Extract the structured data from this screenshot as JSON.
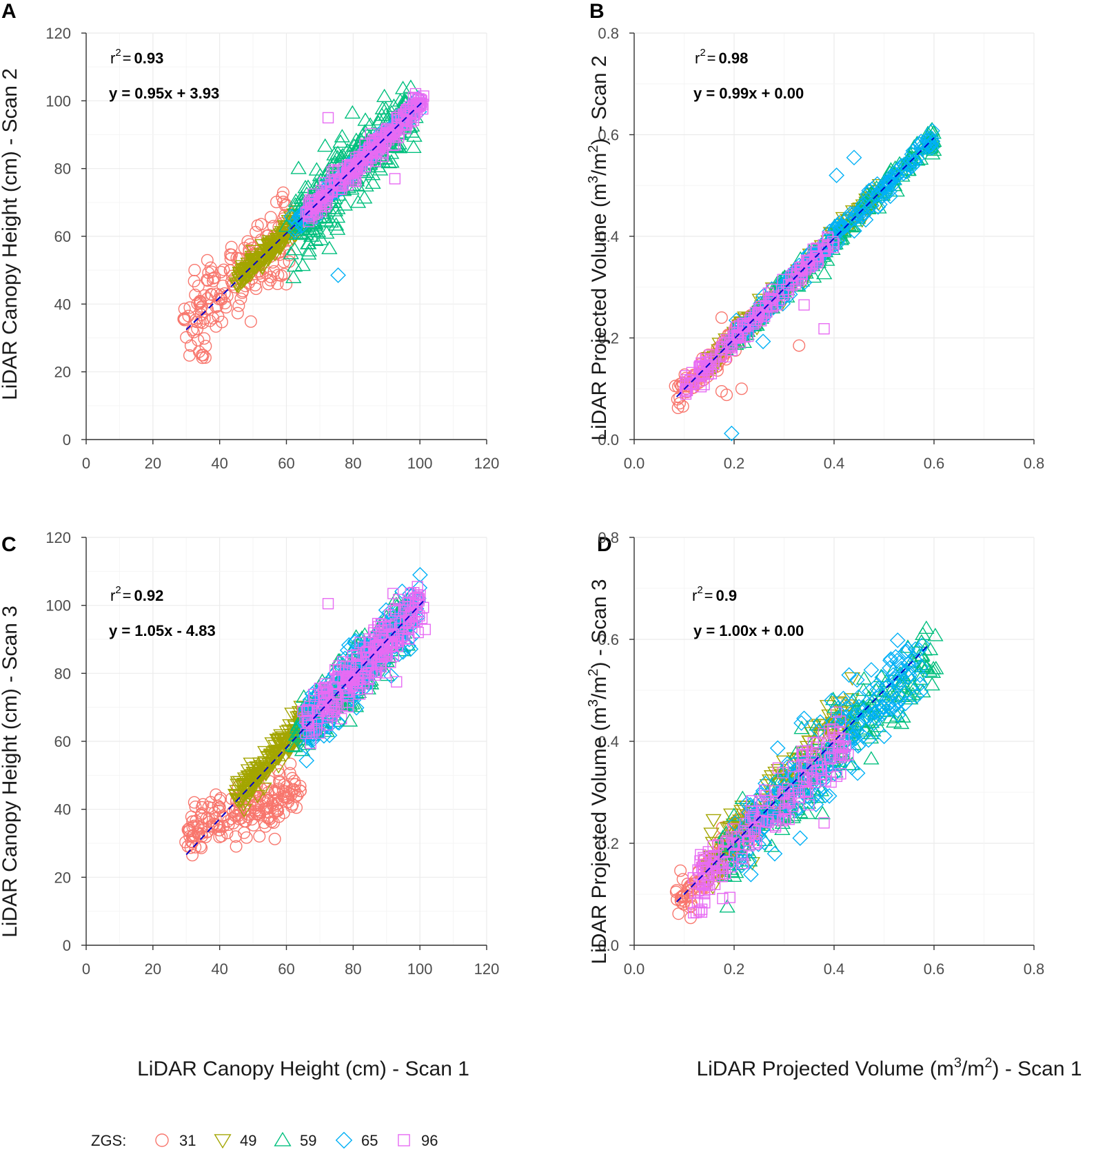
{
  "legend": {
    "title": "ZGS:",
    "entries": [
      {
        "label": "31",
        "color": "#F8766D",
        "shape": "circle"
      },
      {
        "label": "49",
        "color": "#A3A500",
        "shape": "triangle-down"
      },
      {
        "label": "59",
        "color": "#00BF7D",
        "shape": "triangle-up"
      },
      {
        "label": "65",
        "color": "#00B0F6",
        "shape": "diamond"
      },
      {
        "label": "96",
        "color": "#E76BF3",
        "shape": "square"
      }
    ]
  },
  "fit_line_color": "#0000CC",
  "chart_data": [
    {
      "panel": "A",
      "type": "scatter",
      "xlabel": "",
      "ylabel": "LiDAR Canopy Height (cm) - Scan 2",
      "xlim": [
        0,
        120
      ],
      "ylim": [
        0,
        120
      ],
      "xticks": [
        "0",
        "20",
        "40",
        "60",
        "80",
        "100",
        "120"
      ],
      "yticks": [
        "0",
        "20",
        "40",
        "60",
        "80",
        "100",
        "120"
      ],
      "r2_label": "r",
      "r2_sup": "2",
      "r2_eq": "=",
      "r2_value": "0.93",
      "equation": "y = 0.95x + 3.93",
      "fit": {
        "slope": 0.95,
        "intercept": 3.93,
        "x_range": [
          30,
          101
        ]
      },
      "series": [
        {
          "name": "31",
          "x_range": [
            30,
            60
          ],
          "points": 170,
          "slope": 0.95,
          "intercept": 3.93,
          "noise": 6.5
        },
        {
          "name": "49",
          "x_range": [
            45,
            64
          ],
          "points": 180,
          "slope": 0.95,
          "intercept": 3.93,
          "noise": 1.6
        },
        {
          "name": "59",
          "x_range": [
            62,
            98
          ],
          "points": 300,
          "slope": 0.95,
          "intercept": 3.93,
          "noise": 5.5
        },
        {
          "name": "65",
          "x_range": [
            62,
            100
          ],
          "points": 140,
          "slope": 0.95,
          "intercept": 3.93,
          "noise": 1.4
        },
        {
          "name": "96",
          "x_range": [
            66,
            101
          ],
          "points": 260,
          "slope": 0.95,
          "intercept": 3.93,
          "noise": 1.8
        }
      ],
      "outliers": [
        {
          "series": "59",
          "x": 60,
          "y": 63
        },
        {
          "series": "65",
          "x": 75.5,
          "y": 48.5
        },
        {
          "series": "96",
          "x": 72.5,
          "y": 95
        },
        {
          "series": "96",
          "x": 92.5,
          "y": 77
        },
        {
          "series": "96",
          "x": 100.5,
          "y": 100
        }
      ]
    },
    {
      "panel": "B",
      "type": "scatter",
      "xlabel": "",
      "ylabel_prefix": "LiDAR Projected Volume (m",
      "ylabel_sup1": "3",
      "ylabel_mid": "/m",
      "ylabel_sup2": "2",
      "ylabel_suffix": ") - Scan 2",
      "xlim": [
        0,
        0.8
      ],
      "ylim": [
        0,
        0.8
      ],
      "xticks": [
        "0.0",
        "0.2",
        "0.4",
        "0.6",
        "0.8"
      ],
      "yticks": [
        "0.0",
        "0.2",
        "0.4",
        "0.6",
        "0.8"
      ],
      "r2_label": "r",
      "r2_sup": "2",
      "r2_eq": "=",
      "r2_value": "0.98",
      "equation": "y = 0.99x + 0.00",
      "fit": {
        "slope": 0.99,
        "intercept": 0.0,
        "x_range": [
          0.085,
          0.6
        ]
      },
      "series": [
        {
          "name": "31",
          "x_range": [
            0.085,
            0.24
          ],
          "points": 120,
          "slope": 0.99,
          "intercept": 0.0,
          "noise": 0.012
        },
        {
          "name": "49",
          "x_range": [
            0.15,
            0.5
          ],
          "points": 150,
          "slope": 0.99,
          "intercept": 0.0,
          "noise": 0.01
        },
        {
          "name": "59",
          "x_range": [
            0.18,
            0.6
          ],
          "points": 220,
          "slope": 0.99,
          "intercept": 0.0,
          "noise": 0.012
        },
        {
          "name": "65",
          "x_range": [
            0.2,
            0.6
          ],
          "points": 200,
          "slope": 0.99,
          "intercept": 0.0,
          "noise": 0.011
        },
        {
          "name": "96",
          "x_range": [
            0.1,
            0.4
          ],
          "points": 180,
          "slope": 0.99,
          "intercept": 0.0,
          "noise": 0.011
        }
      ],
      "outliers": [
        {
          "series": "65",
          "x": 0.195,
          "y": 0.012
        },
        {
          "series": "65",
          "x": 0.44,
          "y": 0.555
        },
        {
          "series": "65",
          "x": 0.405,
          "y": 0.52
        },
        {
          "series": "65",
          "x": 0.258,
          "y": 0.193
        },
        {
          "series": "96",
          "x": 0.38,
          "y": 0.218
        },
        {
          "series": "96",
          "x": 0.34,
          "y": 0.265
        },
        {
          "series": "31",
          "x": 0.33,
          "y": 0.185
        },
        {
          "series": "31",
          "x": 0.175,
          "y": 0.095
        },
        {
          "series": "31",
          "x": 0.185,
          "y": 0.088
        },
        {
          "series": "31",
          "x": 0.215,
          "y": 0.1
        },
        {
          "series": "31",
          "x": 0.175,
          "y": 0.24
        }
      ]
    },
    {
      "panel": "C",
      "type": "scatter",
      "xlabel": "LiDAR Canopy Height (cm) - Scan 1",
      "ylabel": "LiDAR Canopy Height (cm) - Scan 3",
      "xlim": [
        0,
        120
      ],
      "ylim": [
        0,
        120
      ],
      "xticks": [
        "0",
        "20",
        "40",
        "60",
        "80",
        "100",
        "120"
      ],
      "yticks": [
        "0",
        "20",
        "40",
        "60",
        "80",
        "100",
        "120"
      ],
      "r2_label": "r",
      "r2_sup": "2",
      "r2_eq": "=",
      "r2_value": "0.92",
      "equation": "y = 1.05x - 4.83",
      "fit": {
        "slope": 1.05,
        "intercept": -4.83,
        "x_range": [
          30,
          101
        ]
      },
      "series": [
        {
          "name": "31",
          "x_range": [
            30,
            64
          ],
          "points": 200,
          "slope": 0.35,
          "intercept": 23.0,
          "noise": 3.8
        },
        {
          "name": "49",
          "x_range": [
            45,
            66
          ],
          "points": 190,
          "slope": 1.15,
          "intercept": -9.0,
          "noise": 2.2
        },
        {
          "name": "59",
          "x_range": [
            63,
            97
          ],
          "points": 260,
          "slope": 1.05,
          "intercept": -4.83,
          "noise": 4.5
        },
        {
          "name": "65",
          "x_range": [
            65,
            100
          ],
          "points": 240,
          "slope": 1.05,
          "intercept": -4.83,
          "noise": 4.0
        },
        {
          "name": "96",
          "x_range": [
            66,
            101
          ],
          "points": 260,
          "slope": 1.05,
          "intercept": -4.83,
          "noise": 4.0
        }
      ],
      "outliers": [
        {
          "series": "96",
          "x": 72.5,
          "y": 100.5
        },
        {
          "series": "96",
          "x": 93,
          "y": 77.5
        },
        {
          "series": "59",
          "x": 79,
          "y": 66
        },
        {
          "series": "31",
          "x": 63,
          "y": 40.5
        }
      ]
    },
    {
      "panel": "D",
      "type": "scatter",
      "xlabel_prefix": "LiDAR Projected Volume (m",
      "xlabel_sup1": "3",
      "xlabel_mid": "/m",
      "xlabel_sup2": "2",
      "xlabel_suffix": ") - Scan 1",
      "ylabel_prefix": "LiDAR Projected Volume (m",
      "ylabel_sup1": "3",
      "ylabel_mid": "/m",
      "ylabel_sup2": "2",
      "ylabel_suffix": ") - Scan 3",
      "xlim": [
        0,
        0.8
      ],
      "ylim": [
        0,
        0.8
      ],
      "xticks": [
        "0.0",
        "0.2",
        "0.4",
        "0.6",
        "0.8"
      ],
      "yticks": [
        "0.0",
        "0.2",
        "0.4",
        "0.6",
        "0.8"
      ],
      "r2_label": "r",
      "r2_sup": "2",
      "r2_eq": "=",
      "r2_value": "0.9",
      "equation": "y = 1.00x + 0.00",
      "fit": {
        "slope": 1.0,
        "intercept": 0.0,
        "x_range": [
          0.085,
          0.59
        ]
      },
      "series": [
        {
          "name": "31",
          "x_range": [
            0.085,
            0.25
          ],
          "points": 140,
          "slope": 1.0,
          "intercept": 0.0,
          "noise": 0.02
        },
        {
          "name": "49",
          "x_range": [
            0.15,
            0.44
          ],
          "points": 160,
          "slope": 1.05,
          "intercept": 0.0,
          "noise": 0.03
        },
        {
          "name": "59",
          "x_range": [
            0.18,
            0.6
          ],
          "points": 220,
          "slope": 0.95,
          "intercept": 0.0,
          "noise": 0.035
        },
        {
          "name": "65",
          "x_range": [
            0.2,
            0.58
          ],
          "points": 220,
          "slope": 0.96,
          "intercept": 0.0,
          "noise": 0.035
        },
        {
          "name": "96",
          "x_range": [
            0.12,
            0.42
          ],
          "points": 200,
          "slope": 0.95,
          "intercept": 0.0,
          "noise": 0.035
        }
      ],
      "outliers": [
        {
          "series": "96",
          "x": 0.135,
          "y": 0.065
        },
        {
          "series": "96",
          "x": 0.38,
          "y": 0.24
        },
        {
          "series": "65",
          "x": 0.34,
          "y": 0.445
        },
        {
          "series": "65",
          "x": 0.395,
          "y": 0.48
        },
        {
          "series": "65",
          "x": 0.43,
          "y": 0.53
        },
        {
          "series": "59",
          "x": 0.575,
          "y": 0.595
        }
      ]
    }
  ]
}
